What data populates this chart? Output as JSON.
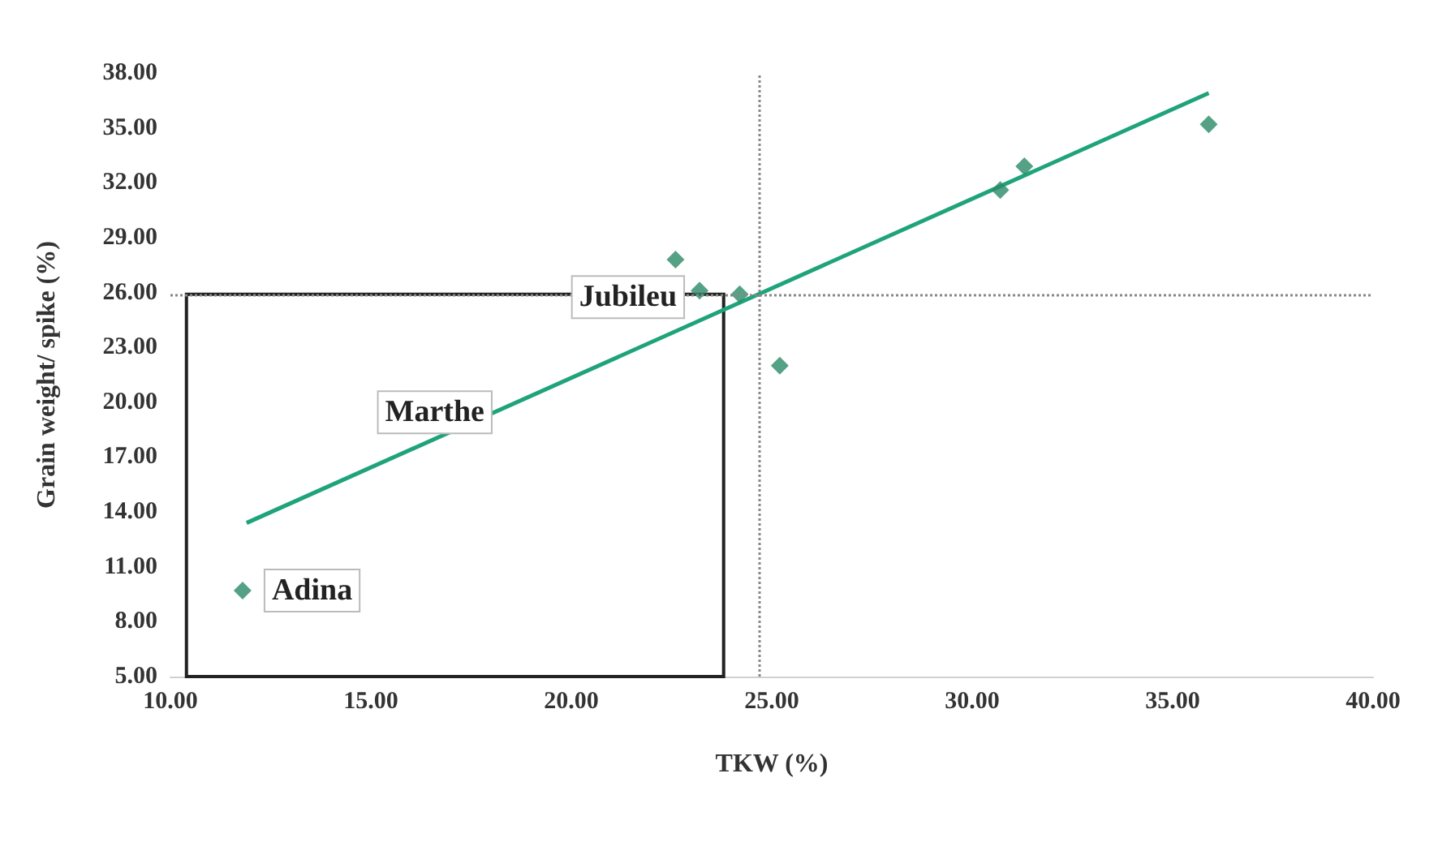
{
  "chart_data": {
    "type": "scatter",
    "xlabel": "TKW (%)",
    "ylabel": "Grain weight/ spike (%)",
    "xlim": [
      10,
      40
    ],
    "xticks": [
      {
        "value": 10,
        "label": "10.00"
      },
      {
        "value": 15,
        "label": "15.00"
      },
      {
        "value": 20,
        "label": "20.00"
      },
      {
        "value": 25,
        "label": "25.00"
      },
      {
        "value": 30,
        "label": "30.00"
      },
      {
        "value": 35,
        "label": "35.00"
      },
      {
        "value": 40,
        "label": "40.00"
      }
    ],
    "ylim": [
      5,
      38
    ],
    "yticks": [
      {
        "value": 5,
        "label": "5.00"
      },
      {
        "value": 8,
        "label": "8.00"
      },
      {
        "value": 11,
        "label": "11.00"
      },
      {
        "value": 14,
        "label": "14.00"
      },
      {
        "value": 17,
        "label": "17.00"
      },
      {
        "value": 20,
        "label": "20.00"
      },
      {
        "value": 23,
        "label": "23.00"
      },
      {
        "value": 26,
        "label": "26.00"
      },
      {
        "value": 29,
        "label": "29.00"
      },
      {
        "value": 32,
        "label": "32.00"
      },
      {
        "value": 35,
        "label": "35.00"
      },
      {
        "value": 38,
        "label": "38.00"
      }
    ],
    "series": [
      {
        "color": "#2a8a68",
        "x": [
          11.8,
          22.6,
          23.2,
          24.2,
          25.2,
          30.7,
          31.3,
          35.9
        ],
        "values": [
          9.7,
          27.8,
          26.1,
          25.9,
          22.0,
          31.6,
          32.9,
          35.2
        ]
      },
      {
        "type": "line",
        "color": "#1fa37a",
        "x": [
          11.9,
          35.9
        ],
        "values": [
          13.4,
          36.9
        ],
        "marker": "none"
      }
    ],
    "marker": "diamond",
    "grid": false,
    "ref_lines": [
      {
        "axis": "x",
        "value": 24.7,
        "color": "#888888",
        "line_style": "dotted"
      },
      {
        "axis": "y",
        "value": 25.9,
        "color": "#888888",
        "line_style": "dotted"
      }
    ],
    "annotations": [
      {
        "text": "Adina",
        "x": 11.8,
        "y": 9.7
      },
      {
        "text": "Marthe",
        "x": 18.4,
        "y": 19.8
      },
      {
        "text": "Jubileu",
        "x": 23.2,
        "y": 26.1
      }
    ]
  }
}
